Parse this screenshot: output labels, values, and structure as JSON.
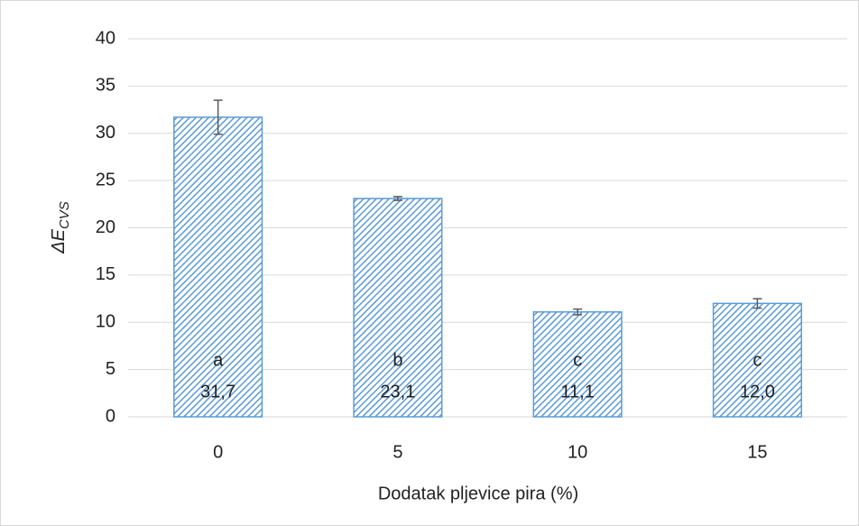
{
  "chart_data": {
    "type": "bar",
    "categories": [
      "0",
      "5",
      "10",
      "15"
    ],
    "values": [
      31.7,
      23.1,
      11.1,
      12.0
    ],
    "value_labels": [
      "31,7",
      "23,1",
      "11,1",
      "12,0"
    ],
    "errors": [
      1.8,
      0.2,
      0.3,
      0.5
    ],
    "group_labels": [
      "a",
      "b",
      "c",
      "c"
    ],
    "color": "#5b9bd5",
    "xlabel": "Dodatak pljevice pira (%)",
    "ylabel": {
      "main": "ΔE",
      "sub": "CVS"
    },
    "ylim": [
      0,
      40
    ],
    "yticks": [
      0,
      5,
      10,
      15,
      20,
      25,
      30,
      35,
      40
    ],
    "grid": true
  }
}
